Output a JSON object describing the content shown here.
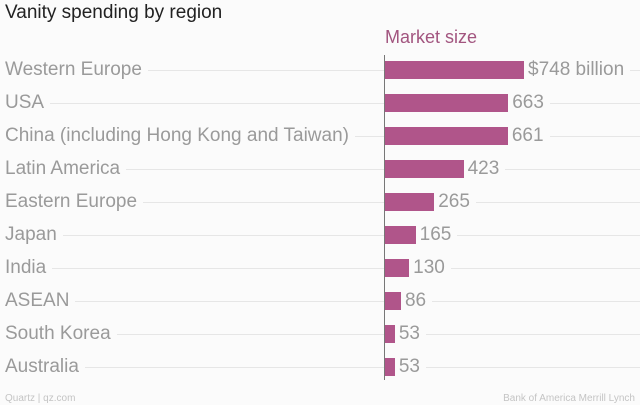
{
  "chart_data": {
    "type": "bar",
    "orientation": "horizontal",
    "title": "Vanity spending by region",
    "series_label": "Market size",
    "unit_label": "$748 billion",
    "categories": [
      "Western Europe",
      "USA",
      "China (including Hong Kong and Taiwan)",
      "Latin America",
      "Eastern Europe",
      "Japan",
      "India",
      "ASEAN",
      "South Korea",
      "Australia"
    ],
    "values": [
      748,
      663,
      661,
      423,
      265,
      165,
      130,
      86,
      53,
      53
    ],
    "value_labels": [
      "$748 billion",
      "663",
      "661",
      "423",
      "265",
      "165",
      "130",
      "86",
      "53",
      "53"
    ],
    "bar_color": "#b0558a",
    "xlim": [
      0,
      748
    ]
  },
  "footer": {
    "left": "Quartz | qz.com",
    "right": "Bank of America Merrill Lynch"
  }
}
